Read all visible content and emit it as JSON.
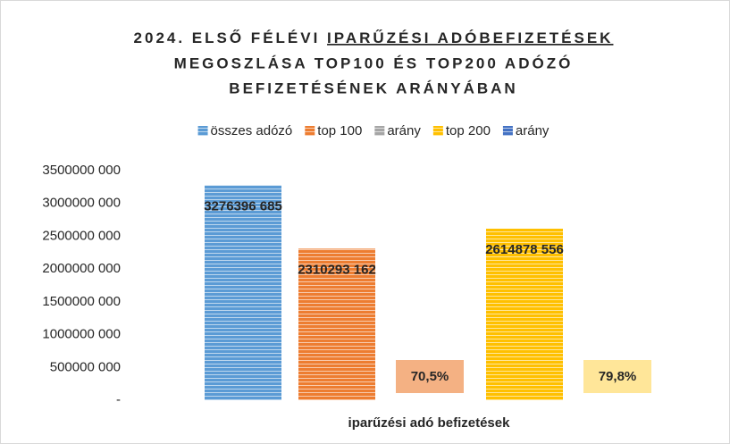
{
  "chart_data": {
    "type": "bar",
    "title": [
      "2024. ELSŐ FÉLÉVI",
      "IPARŰZÉSI  ADÓBEFIZETÉSEK",
      "MEGOSZLÁSA TOP100 ÉS TOP200 ADÓZÓ",
      "BEFIZETÉSÉNEK ARÁNYÁBAN"
    ],
    "categories": [
      "iparűzési adó befizetések"
    ],
    "series": [
      {
        "name": "összes adózó",
        "color": "#5b9bd5",
        "values": [
          3276396685
        ],
        "value_labels": [
          "3276396 685"
        ]
      },
      {
        "name": "top 100",
        "color": "#ed7d31",
        "values": [
          2310293162
        ],
        "value_labels": [
          "2310293 162"
        ]
      },
      {
        "name": "arány",
        "color": "#a5a5a5",
        "values": [
          70.5
        ],
        "value_labels": [
          "70,5%"
        ],
        "label_color": "#f4b183"
      },
      {
        "name": "top 200",
        "color": "#ffc000",
        "values": [
          2614878556
        ],
        "value_labels": [
          "2614878 556"
        ]
      },
      {
        "name": "arány",
        "color": "#4472c4",
        "values": [
          79.8
        ],
        "value_labels": [
          "79,8%"
        ],
        "label_color": "#ffe699"
      }
    ],
    "ylim": [
      0,
      3500000000
    ],
    "yticks": [
      {
        "value": 0,
        "label": "-"
      },
      {
        "value": 500000000,
        "label": "500000 000"
      },
      {
        "value": 1000000000,
        "label": "1000000 000"
      },
      {
        "value": 1500000000,
        "label": "1500000 000"
      },
      {
        "value": 2000000000,
        "label": "2000000 000"
      },
      {
        "value": 2500000000,
        "label": "2500000 000"
      },
      {
        "value": 3000000000,
        "label": "3000000 000"
      },
      {
        "value": 3500000000,
        "label": "3500000 000"
      }
    ],
    "grid": false,
    "legend": "top"
  }
}
